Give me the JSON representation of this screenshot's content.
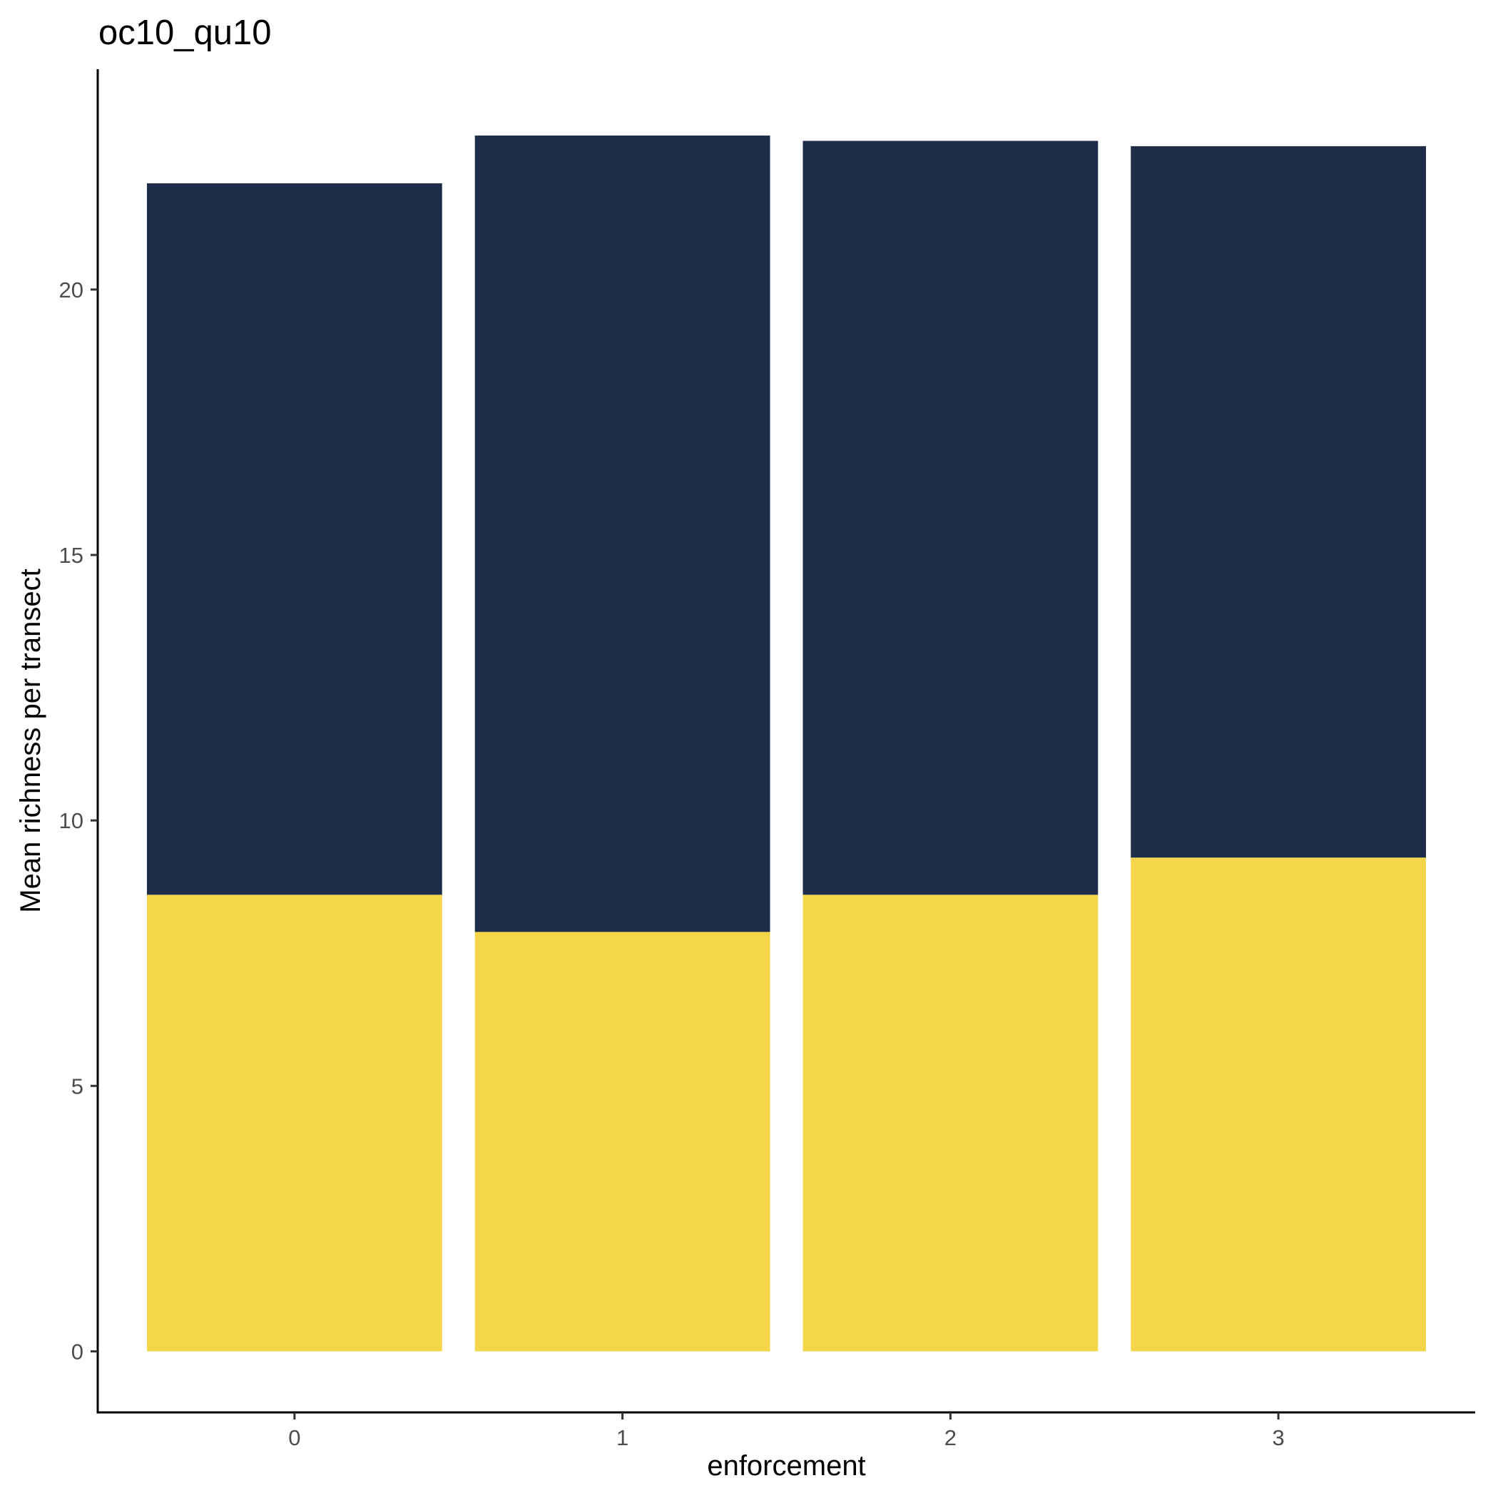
{
  "chart_data": {
    "type": "bar",
    "stacked": true,
    "title": "oc10_qu10",
    "xlabel": "enforcement",
    "ylabel": "Mean richness per transect",
    "categories": [
      "0",
      "1",
      "2",
      "3"
    ],
    "series": [
      {
        "values": [
          8.6,
          7.9,
          8.6,
          9.3
        ],
        "color": "#F5D54A"
      },
      {
        "values": [
          13.4,
          15.0,
          14.2,
          13.4
        ],
        "color": "#1E2E4A"
      }
    ],
    "yticks": [
      0,
      5,
      10,
      15,
      20
    ],
    "ytick_labels": [
      "0",
      "5",
      "10",
      "15",
      "20"
    ],
    "ylim": [
      -1.15,
      24.15
    ],
    "grid": false,
    "legend": "none"
  }
}
